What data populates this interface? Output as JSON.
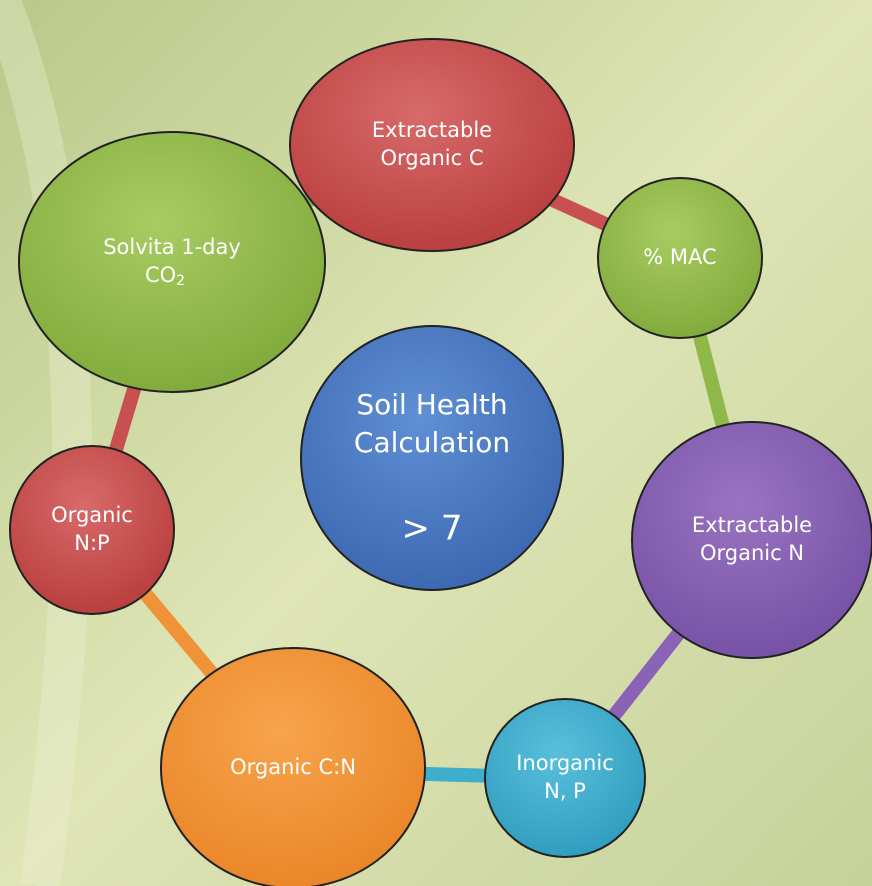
{
  "nodes": [
    {
      "lines": [
        "Extractable",
        "Organic C"
      ]
    },
    {
      "lines": [
        "% MAC"
      ]
    },
    {
      "lines": [
        "Extractable",
        "Organic N"
      ]
    },
    {
      "lines": [
        "Inorganic",
        "N, P"
      ]
    },
    {
      "lines": [
        "Organic C:N"
      ]
    },
    {
      "lines": [
        "Organic",
        "N:P"
      ]
    },
    {
      "lines": [
        "Solvita 1-day",
        "CO"
      ],
      "subscript": "2"
    }
  ],
  "center": {
    "lines": [
      "Soil Health",
      "Calculation"
    ],
    "value": "> 7"
  }
}
